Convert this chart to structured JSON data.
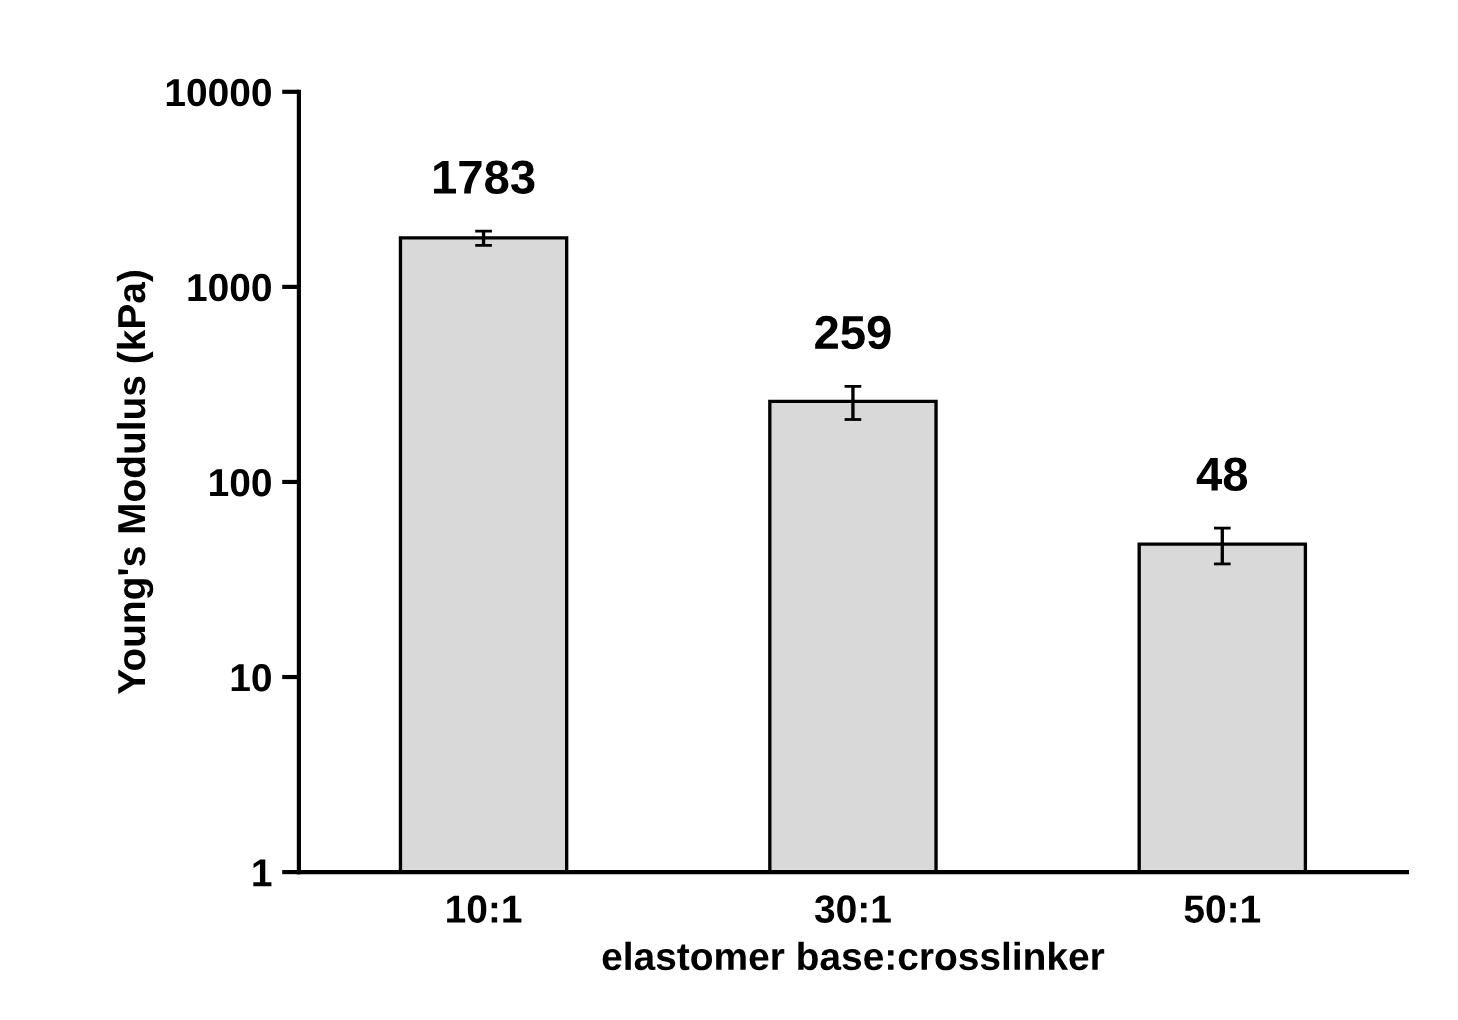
{
  "chart_data": {
    "type": "bar",
    "xlabel": "elastomer base:crosslinker",
    "ylabel": "Young's Modulus (kPa)",
    "categories": [
      "10:1",
      "30:1",
      "50:1"
    ],
    "values": [
      1783,
      259,
      48
    ],
    "errors": [
      150,
      50,
      10
    ],
    "color": "#d9d9d9",
    "log": true,
    "ylim": [
      1,
      10000
    ],
    "yticks": [
      1,
      10,
      100,
      1000,
      10000
    ],
    "data_labels": true,
    "grid": false,
    "legend": false
  }
}
